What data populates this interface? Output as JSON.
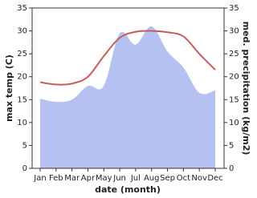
{
  "chart_data": {
    "type": "line_area",
    "x_label": "date (month)",
    "y_label": "max temp (C)",
    "y2_label": "med. precipitation (kg/m2)",
    "categories": [
      "Jan",
      "Feb",
      "Mar",
      "Apr",
      "May",
      "Jun",
      "Jul",
      "Aug",
      "Sep",
      "Oct",
      "Nov",
      "Dec"
    ],
    "series": [
      {
        "name": "med. precipitation",
        "kind": "area",
        "axis": "y2",
        "color": "#b4c1f2",
        "values": [
          15.2,
          14.5,
          15,
          18,
          18,
          29.5,
          27,
          31,
          25.5,
          22,
          16.5,
          17
        ]
      },
      {
        "name": "max temp",
        "kind": "line",
        "color": "#c85a5a",
        "values": [
          18.8,
          18.3,
          18.5,
          20,
          24.5,
          28.5,
          29.8,
          30,
          29.7,
          28.8,
          25,
          21.5
        ]
      }
    ],
    "ylim": [
      0,
      35
    ],
    "yticks": [
      0,
      5,
      10,
      15,
      20,
      25,
      30,
      35
    ],
    "y2lim": [
      0,
      35
    ],
    "y2ticks": [
      0,
      5,
      10,
      15,
      20,
      25,
      30,
      35
    ]
  }
}
